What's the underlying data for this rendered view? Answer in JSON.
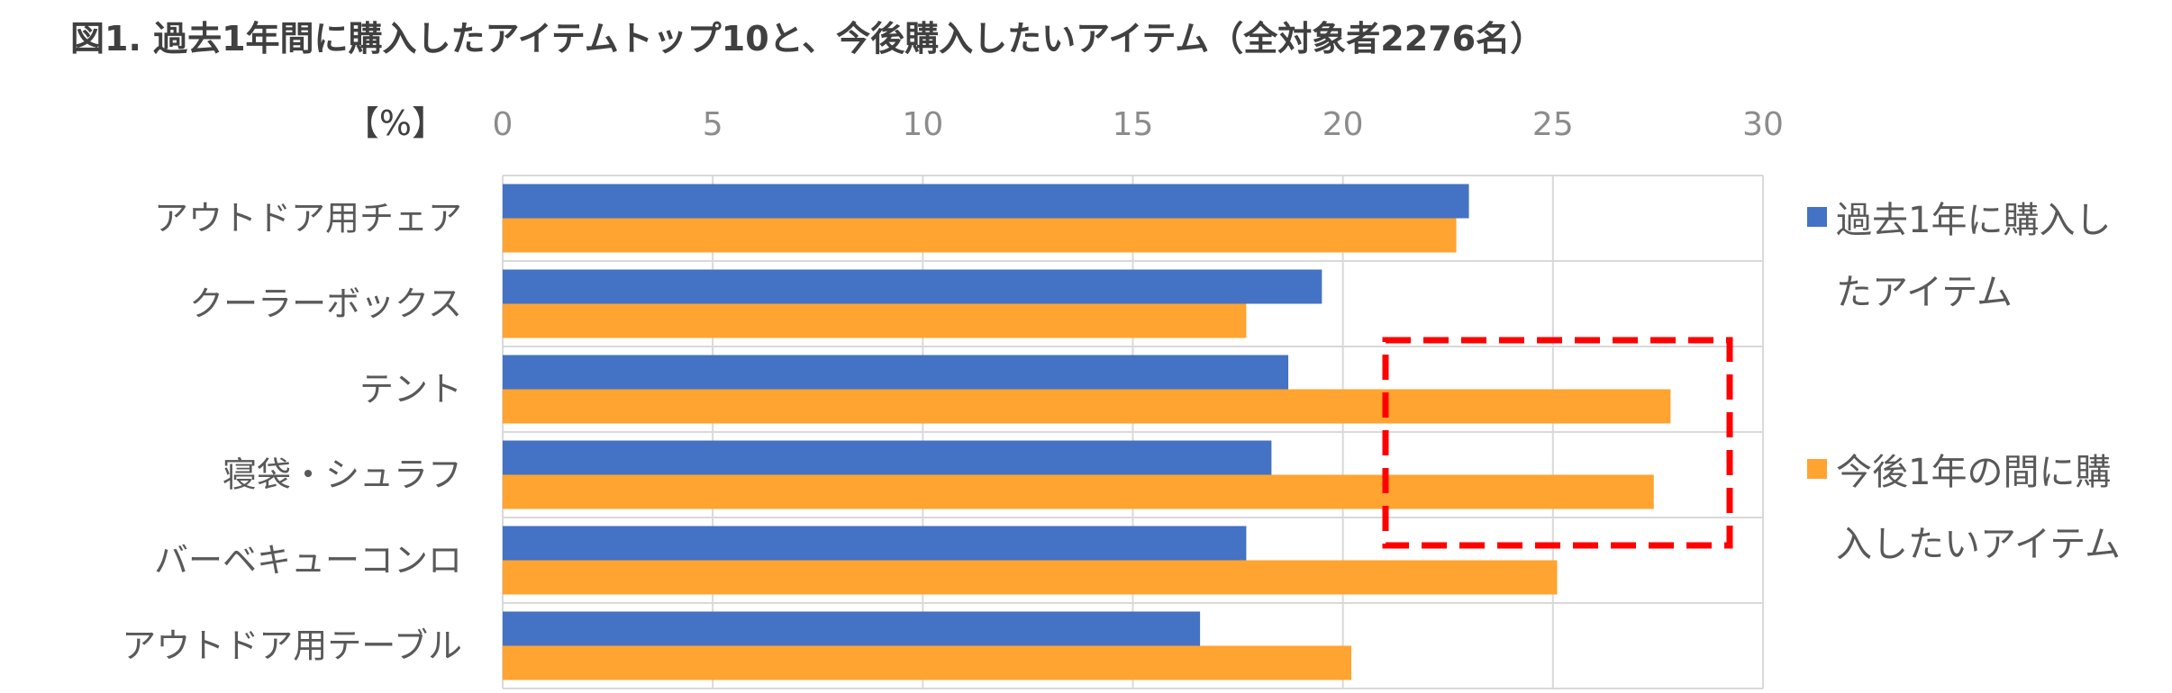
{
  "title": "図1. 過去1年間に購入したアイテムトップ10と、今後購入したいアイテム（全対象者2276名）",
  "unit_label": "【%】",
  "colors": {
    "series1": "#4472c4",
    "series2": "#ffa331",
    "highlight": "#ff0000",
    "grid": "#d9d9d9"
  },
  "chart_data": {
    "type": "bar",
    "orientation": "horizontal",
    "categories": [
      "アウトドア用チェア",
      "クーラーボックス",
      "テント",
      "寝袋・シュラフ",
      "バーベキューコンロ",
      "アウトドア用テーブル"
    ],
    "series": [
      {
        "name": "過去1年に購入したアイテム",
        "legend_lines": [
          "過去1年に購入し",
          "たアイテム"
        ],
        "values": [
          23.0,
          19.5,
          18.7,
          18.3,
          17.7,
          16.6
        ]
      },
      {
        "name": "今後1年の間に購入したいアイテム",
        "legend_lines": [
          "今後1年の間に購",
          "入したいアイテム"
        ],
        "values": [
          22.7,
          17.7,
          27.8,
          27.4,
          25.1,
          20.2
        ]
      }
    ],
    "xlim": [
      0,
      30
    ],
    "xticks": [
      "0",
      "5",
      "10",
      "15",
      "20",
      "25",
      "30"
    ],
    "grid": true,
    "legend": "right",
    "annotation": "red dashed box around テント and 寝袋・シュラフ (今後1年の間に購入したいアイテム)"
  }
}
